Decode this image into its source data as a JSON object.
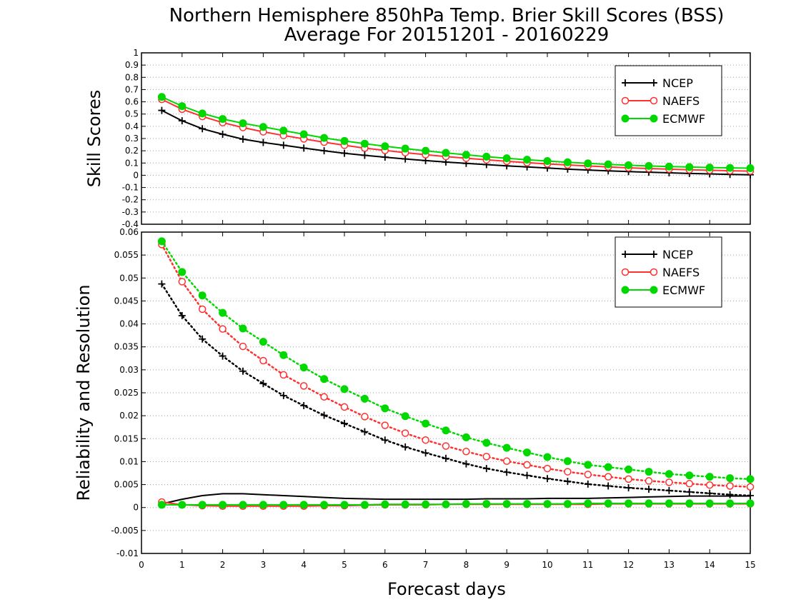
{
  "title": {
    "line1": "Northern Hemisphere 850hPa Temp. Brier Skill Scores (BSS)",
    "line2": "Average For 20151201 - 20160229"
  },
  "xlabel": "Forecast days",
  "colors": {
    "NCEP": "#000000",
    "NAEFS": "#ff3030",
    "ECMWF": "#00d800",
    "grid": "#a0a0a0"
  },
  "chart_data": [
    {
      "type": "line",
      "panel": "top",
      "ylabel": "Skill Scores",
      "xlim": [
        0,
        15
      ],
      "ylim": [
        -0.4,
        1
      ],
      "xticks": [
        "0",
        "1",
        "2",
        "3",
        "4",
        "5",
        "6",
        "7",
        "8",
        "9",
        "10",
        "11",
        "12",
        "13",
        "14",
        "15"
      ],
      "yticks": [
        "1",
        "0.9",
        "0.8",
        "0.7",
        "0.6",
        "0.5",
        "0.4",
        "0.3",
        "0.2",
        "0.1",
        "0",
        "-0.1",
        "-0.2",
        "-0.3",
        "-0.4"
      ],
      "grid": true,
      "legend": "top-right",
      "x": [
        0.5,
        1,
        1.5,
        2,
        2.5,
        3,
        3.5,
        4,
        4.5,
        5,
        5.5,
        6,
        6.5,
        7,
        7.5,
        8,
        8.5,
        9,
        9.5,
        10,
        10.5,
        11,
        11.5,
        12,
        12.5,
        13,
        13.5,
        14,
        14.5,
        15
      ],
      "series": [
        {
          "name": "NCEP",
          "marker": "plus",
          "values": [
            0.53,
            0.445,
            0.38,
            0.335,
            0.295,
            0.268,
            0.245,
            0.222,
            0.2,
            0.18,
            0.163,
            0.148,
            0.133,
            0.12,
            0.108,
            0.097,
            0.087,
            0.077,
            0.068,
            0.059,
            0.05,
            0.043,
            0.036,
            0.03,
            0.025,
            0.02,
            0.015,
            0.011,
            0.007,
            0.004
          ]
        },
        {
          "name": "NAEFS",
          "marker": "open-circle",
          "values": [
            0.62,
            0.54,
            0.48,
            0.43,
            0.39,
            0.355,
            0.325,
            0.297,
            0.27,
            0.245,
            0.222,
            0.203,
            0.185,
            0.168,
            0.153,
            0.139,
            0.126,
            0.114,
            0.103,
            0.093,
            0.084,
            0.076,
            0.068,
            0.061,
            0.055,
            0.05,
            0.045,
            0.041,
            0.037,
            0.034
          ]
        },
        {
          "name": "ECMWF",
          "marker": "filled-circle",
          "values": [
            0.64,
            0.565,
            0.505,
            0.46,
            0.425,
            0.395,
            0.365,
            0.335,
            0.305,
            0.28,
            0.258,
            0.237,
            0.218,
            0.2,
            0.183,
            0.167,
            0.152,
            0.139,
            0.127,
            0.116,
            0.106,
            0.097,
            0.089,
            0.082,
            0.076,
            0.071,
            0.067,
            0.063,
            0.06,
            0.058
          ]
        }
      ]
    },
    {
      "type": "line",
      "panel": "bottom",
      "ylabel": "Reliability and Resolution",
      "xlim": [
        0,
        15
      ],
      "ylim": [
        -0.01,
        0.06
      ],
      "xticks": [
        "0",
        "1",
        "2",
        "3",
        "4",
        "5",
        "6",
        "7",
        "8",
        "9",
        "10",
        "11",
        "12",
        "13",
        "14",
        "15"
      ],
      "yticks": [
        "0.06",
        "0.055",
        "0.05",
        "0.045",
        "0.04",
        "0.035",
        "0.03",
        "0.025",
        "0.02",
        "0.015",
        "0.01",
        "0.005",
        "0",
        "-0.005",
        "-0.01"
      ],
      "grid": true,
      "legend": "top-right",
      "x": [
        0.5,
        1,
        1.5,
        2,
        2.5,
        3,
        3.5,
        4,
        4.5,
        5,
        5.5,
        6,
        6.5,
        7,
        7.5,
        8,
        8.5,
        9,
        9.5,
        10,
        10.5,
        11,
        11.5,
        12,
        12.5,
        13,
        13.5,
        14,
        14.5,
        15
      ],
      "series": [
        {
          "name": "NCEP",
          "group": "resolution",
          "style": "dotted",
          "marker": "plus",
          "values": [
            0.0487,
            0.0418,
            0.0367,
            0.033,
            0.0297,
            0.027,
            0.0244,
            0.0222,
            0.0201,
            0.0183,
            0.0165,
            0.0147,
            0.0132,
            0.0119,
            0.0107,
            0.0095,
            0.0085,
            0.0077,
            0.007,
            0.0063,
            0.0057,
            0.0051,
            0.0047,
            0.0043,
            0.004,
            0.0037,
            0.0034,
            0.0031,
            0.0028,
            0.0026
          ]
        },
        {
          "name": "NAEFS",
          "group": "resolution",
          "style": "dotted",
          "marker": "open-circle",
          "values": [
            0.0573,
            0.0492,
            0.0432,
            0.0389,
            0.0351,
            0.032,
            0.0289,
            0.0265,
            0.0241,
            0.0219,
            0.0198,
            0.0179,
            0.0162,
            0.0147,
            0.0134,
            0.0122,
            0.0111,
            0.0101,
            0.0093,
            0.0085,
            0.0078,
            0.0072,
            0.0067,
            0.0062,
            0.0058,
            0.0055,
            0.0052,
            0.0049,
            0.0047,
            0.0045
          ]
        },
        {
          "name": "ECMWF",
          "group": "resolution",
          "style": "dotted",
          "marker": "filled-circle",
          "values": [
            0.058,
            0.0513,
            0.0462,
            0.0424,
            0.039,
            0.0361,
            0.0332,
            0.0305,
            0.028,
            0.0258,
            0.0237,
            0.0216,
            0.0199,
            0.0183,
            0.0168,
            0.0153,
            0.0141,
            0.013,
            0.012,
            0.011,
            0.0101,
            0.0093,
            0.0088,
            0.0083,
            0.0078,
            0.0073,
            0.007,
            0.0067,
            0.0064,
            0.0062
          ]
        },
        {
          "name": "NCEP",
          "group": "reliability",
          "style": "solid",
          "marker": "none",
          "values": [
            0.0008,
            0.0018,
            0.0026,
            0.003,
            0.003,
            0.0028,
            0.0026,
            0.0024,
            0.0022,
            0.002,
            0.0019,
            0.0018,
            0.0018,
            0.0018,
            0.0018,
            0.0018,
            0.0019,
            0.0019,
            0.0019,
            0.002,
            0.002,
            0.002,
            0.0021,
            0.0022,
            0.0023,
            0.0024,
            0.0025,
            0.0025,
            0.0025,
            0.0025
          ]
        },
        {
          "name": "NAEFS",
          "group": "reliability",
          "style": "solid",
          "marker": "open-circle",
          "values": [
            0.0012,
            0.0006,
            0.0004,
            0.0003,
            0.0003,
            0.0003,
            0.0003,
            0.0003,
            0.0004,
            0.0004,
            0.0005,
            0.0006,
            0.0006,
            0.0006,
            0.0007,
            0.0007,
            0.0007,
            0.0007,
            0.0007,
            0.0007,
            0.0007,
            0.0007,
            0.0008,
            0.0008,
            0.0008,
            0.0008,
            0.0008,
            0.0008,
            0.0008,
            0.0008
          ]
        },
        {
          "name": "ECMWF",
          "group": "reliability",
          "style": "solid",
          "marker": "filled-circle",
          "values": [
            0.0006,
            0.0006,
            0.0006,
            0.0006,
            0.0006,
            0.0006,
            0.0006,
            0.0006,
            0.0006,
            0.0006,
            0.0006,
            0.0007,
            0.0007,
            0.0007,
            0.0007,
            0.0008,
            0.0008,
            0.0008,
            0.0008,
            0.0008,
            0.0008,
            0.0009,
            0.0009,
            0.0009,
            0.0009,
            0.0009,
            0.0009,
            0.0009,
            0.0009,
            0.0009
          ]
        }
      ]
    }
  ]
}
